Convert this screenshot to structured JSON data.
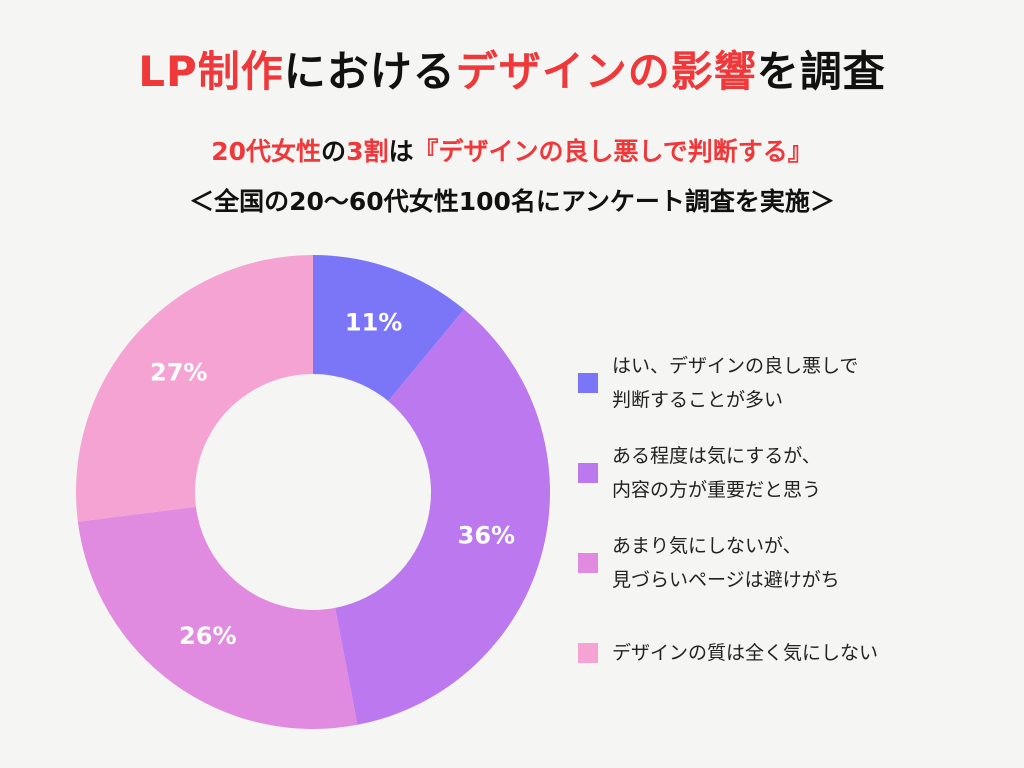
{
  "chart_data": {
    "type": "donut",
    "title": [
      "LP制作",
      "における",
      "デザインの影響",
      "を調査"
    ],
    "subtitle": [
      "20代女性",
      "の",
      "3割",
      "は",
      "『デザインの良し悪しで判断する』"
    ],
    "note": "＜全国の20〜60代女性100名にアンケート調査を実施＞",
    "categories": [
      "はい、デザインの良し悪しで\n判断することが多い",
      "ある程度は気にするが、\n内容の方が重要だと思う",
      "あまり気にしないが、\n見づらいページは避けがち",
      "デザインの質は全く気にしない"
    ],
    "values": [
      11,
      36,
      26,
      27
    ],
    "value_labels": [
      "11%",
      "36%",
      "26%",
      "27%"
    ],
    "colors": [
      "#7b76f8",
      "#bc78ee",
      "#e08ae0",
      "#f5a3d3"
    ]
  }
}
